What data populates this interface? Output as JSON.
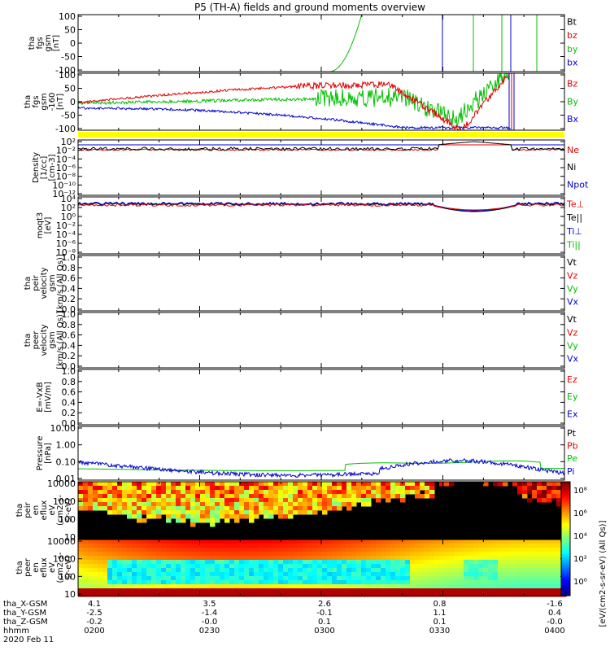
{
  "title": "P5 (TH-A) fields and ground moments overview",
  "colors": {
    "black": "#000000",
    "red": "#e00000",
    "green": "#00c000",
    "blue": "#0000d0",
    "yellow": "#ffff00"
  },
  "chart_data": [
    {
      "type": "line",
      "ylabel_lines": [
        "tha",
        "fgs",
        "gsm",
        "[nT]"
      ],
      "yticks": [
        "100",
        "50",
        "0",
        "-50",
        "-100"
      ],
      "ylim": [
        -100,
        100
      ],
      "legend": [
        {
          "name": "Bt",
          "color": "black"
        },
        {
          "name": "bz",
          "color": "red"
        },
        {
          "name": "by",
          "color": "green"
        },
        {
          "name": "bx",
          "color": "blue"
        }
      ]
    },
    {
      "type": "line",
      "ylabel_lines": [
        "tha",
        "fgs",
        "gsm",
        "-160",
        "[nT]"
      ],
      "yticks": [
        "100",
        "50",
        "0",
        "-50",
        "-100"
      ],
      "ylim": [
        -125,
        125
      ],
      "legend": [
        {
          "name": "Bz",
          "color": "red"
        },
        {
          "name": "By",
          "color": "green"
        },
        {
          "name": "Bx",
          "color": "blue"
        }
      ]
    },
    {
      "type": "line",
      "ylabel_lines": [
        "Density",
        "[1/cc]",
        "[cm-3]"
      ],
      "yticks": [
        "10²",
        "10⁻²",
        "10⁻⁴",
        "10⁻⁶",
        "10⁻⁸",
        "10⁻¹⁰",
        "10⁻¹²"
      ],
      "legend": [
        {
          "name": "Ne",
          "color": "red"
        },
        {
          "name": "Ni",
          "color": "black"
        },
        {
          "name": "Npot",
          "color": "blue"
        }
      ]
    },
    {
      "type": "line",
      "ylabel_lines": [
        "moqt3",
        "[eV]"
      ],
      "yticks": [
        "10⁴",
        "10²",
        "10⁰",
        "10⁻²",
        "10⁻⁴",
        "10⁻⁶",
        "10⁻⁸"
      ],
      "legend": [
        {
          "name": "Te⊥",
          "color": "red"
        },
        {
          "name": "Te||",
          "color": "black"
        },
        {
          "name": "Ti⊥",
          "color": "blue"
        },
        {
          "name": "Ti||",
          "color": "green"
        }
      ]
    },
    {
      "type": "line",
      "ylabel_lines": [
        "tha",
        "peir",
        "velocity",
        "gsm",
        "[km/s (All Qs)]"
      ],
      "yticks": [
        "1.0",
        "0.8",
        "0.6",
        "0.4",
        "0.2",
        "0.0"
      ],
      "ylim": [
        0,
        1
      ],
      "legend": [
        {
          "name": "Vt",
          "color": "black"
        },
        {
          "name": "Vz",
          "color": "red"
        },
        {
          "name": "Vy",
          "color": "green"
        },
        {
          "name": "Vx",
          "color": "blue"
        }
      ]
    },
    {
      "type": "line",
      "ylabel_lines": [
        "tha",
        "peer",
        "velocity",
        "gsm",
        "[km/s (All Qs)]"
      ],
      "yticks": [
        "1.0",
        "0.8",
        "0.6",
        "0.4",
        "0.2",
        "0.0"
      ],
      "ylim": [
        0,
        1
      ],
      "legend": [
        {
          "name": "Vt",
          "color": "black"
        },
        {
          "name": "Vz",
          "color": "red"
        },
        {
          "name": "Vy",
          "color": "green"
        },
        {
          "name": "Vx",
          "color": "blue"
        }
      ]
    },
    {
      "type": "line",
      "ylabel_lines": [
        "E=-VxB",
        "[mV/m]"
      ],
      "yticks": [
        "1.0",
        "0.8",
        "0.6",
        "0.4",
        "0.2",
        "0.0"
      ],
      "ylim": [
        0,
        1
      ],
      "legend": [
        {
          "name": "Ez",
          "color": "red"
        },
        {
          "name": "Ey",
          "color": "green"
        },
        {
          "name": "Ex",
          "color": "blue"
        }
      ]
    },
    {
      "type": "line",
      "ylabel_lines": [
        "Pressure",
        "[nPa]"
      ],
      "yticks": [
        "10.00",
        "1.00",
        "0.10",
        "0.01"
      ],
      "ylog": true,
      "legend": [
        {
          "name": "Pt",
          "color": "black"
        },
        {
          "name": "Pb",
          "color": "red"
        },
        {
          "name": "Pe",
          "color": "green"
        },
        {
          "name": "Pi",
          "color": "blue"
        }
      ]
    },
    {
      "type": "heatmap",
      "ylabel_lines": [
        "tha",
        "peir",
        "en",
        "eflux",
        "eV",
        "(cm2-s-",
        "sr-eV)"
      ],
      "yticks": [
        "10000",
        "1000",
        "100",
        "10"
      ],
      "ylog": true
    },
    {
      "type": "heatmap",
      "ylabel_lines": [
        "tha",
        "peer",
        "en",
        "eflux",
        "eV",
        "(cm2-s-",
        "sr-eV)"
      ],
      "yticks": [
        "10000",
        "1000",
        "100",
        "10"
      ],
      "ylog": true
    }
  ],
  "colorbar": {
    "label": "[eV/(cm2-s-sr-eV) (All Qs)]",
    "ticks": [
      "10⁸",
      "10⁶",
      "10⁴",
      "10²",
      "10⁰"
    ]
  },
  "xaxis": {
    "row_labels": [
      "tha_X-GSM",
      "tha_Y-GSM",
      "tha_Z-GSM",
      "hhmm",
      "2020 Feb 11"
    ],
    "ticks": [
      {
        "x": "4.1",
        "y": "-2.5",
        "z": "-0.2",
        "time": "0200"
      },
      {
        "x": "3.5",
        "y": "-1.4",
        "z": "-0.0",
        "time": "0230"
      },
      {
        "x": "2.6",
        "y": "-0.1",
        "z": "0.1",
        "time": "0300"
      },
      {
        "x": "0.8",
        "y": "1.1",
        "z": "0.1",
        "time": "0330"
      },
      {
        "x": "-1.6",
        "y": "0.4",
        "z": "-0.0",
        "time": "0400"
      }
    ]
  }
}
